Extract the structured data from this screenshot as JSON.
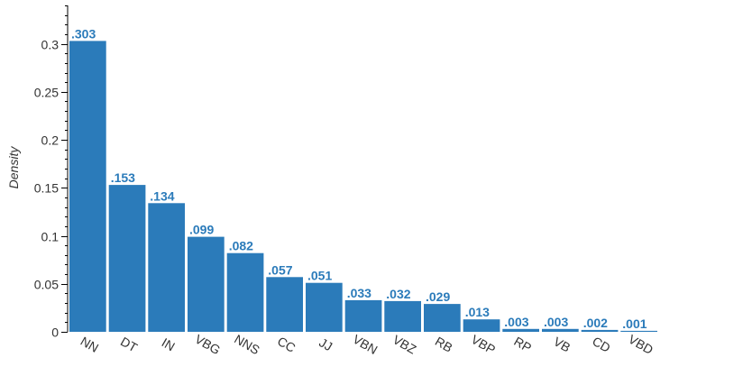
{
  "chart_data": {
    "type": "bar",
    "ylabel": "Density",
    "xlabel": "",
    "ylim": [
      0,
      0.34
    ],
    "yticks": [
      0,
      0.05,
      0.1,
      0.15,
      0.2,
      0.25,
      0.3
    ],
    "ytick_labels": [
      "0",
      "0.05",
      "0.1",
      "0.15",
      "0.2",
      "0.25",
      "0.3"
    ],
    "categories": [
      "NN",
      "DT",
      "IN",
      "VBG",
      "NNS",
      "CC",
      "JJ",
      "VBN",
      "VBZ",
      "RB",
      "VBP",
      "RP",
      "VB",
      "CD",
      "VBD"
    ],
    "values": [
      0.303,
      0.153,
      0.134,
      0.099,
      0.082,
      0.057,
      0.051,
      0.033,
      0.032,
      0.029,
      0.013,
      0.003,
      0.003,
      0.002,
      0.001
    ],
    "data_labels": [
      ".303",
      ".153",
      ".134",
      ".099",
      ".082",
      ".057",
      ".051",
      ".033",
      ".032",
      ".029",
      ".013",
      ".003",
      ".003",
      ".002",
      ".001"
    ],
    "bar_color": "#2b7bba",
    "label_color": "#2b7bba",
    "grid": false,
    "legend": "none"
  }
}
